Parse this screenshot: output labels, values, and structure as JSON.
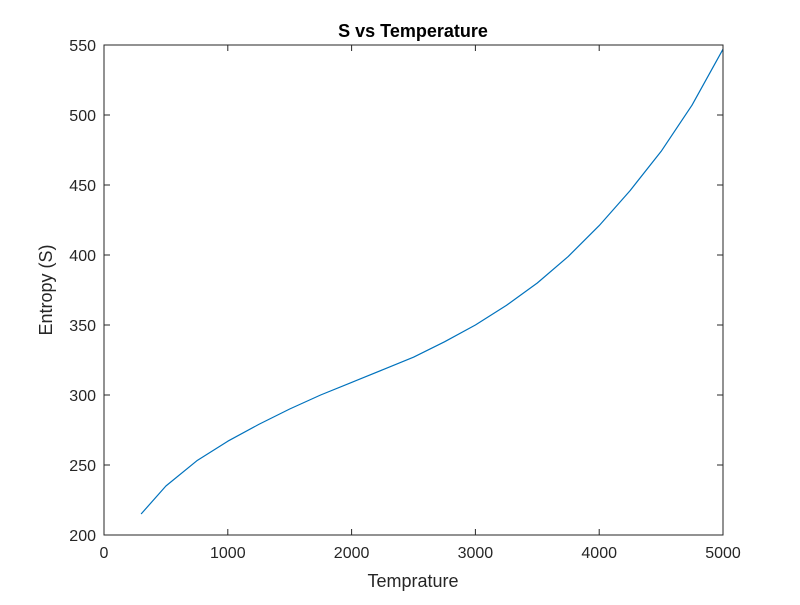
{
  "chart_data": {
    "type": "line",
    "title": "S vs Temperature",
    "xlabel": "Temprature",
    "ylabel": "Entropy (S)",
    "xlim": [
      0,
      5000
    ],
    "ylim": [
      200,
      550
    ],
    "xticks": [
      0,
      1000,
      2000,
      3000,
      4000,
      5000
    ],
    "yticks": [
      200,
      250,
      300,
      350,
      400,
      450,
      500,
      550
    ],
    "grid": false,
    "legend": null,
    "series": [
      {
        "name": "S",
        "color": "#0072BD",
        "x": [
          300,
          500,
          750,
          1000,
          1250,
          1500,
          1750,
          2000,
          2250,
          2500,
          2750,
          3000,
          3250,
          3500,
          3750,
          4000,
          4250,
          4500,
          4750,
          5000
        ],
        "y": [
          215,
          235,
          253,
          267,
          279,
          290,
          300,
          309,
          318,
          327,
          338,
          350,
          364,
          380,
          399,
          421,
          446,
          474,
          507,
          547
        ]
      }
    ]
  },
  "labels": {
    "title": "S vs Temperature",
    "xlabel": "Temprature",
    "ylabel": "Entropy (S)"
  },
  "xtick_labels": [
    "0",
    "1000",
    "2000",
    "3000",
    "4000",
    "5000"
  ],
  "ytick_labels": [
    "200",
    "250",
    "300",
    "350",
    "400",
    "450",
    "500",
    "550"
  ]
}
